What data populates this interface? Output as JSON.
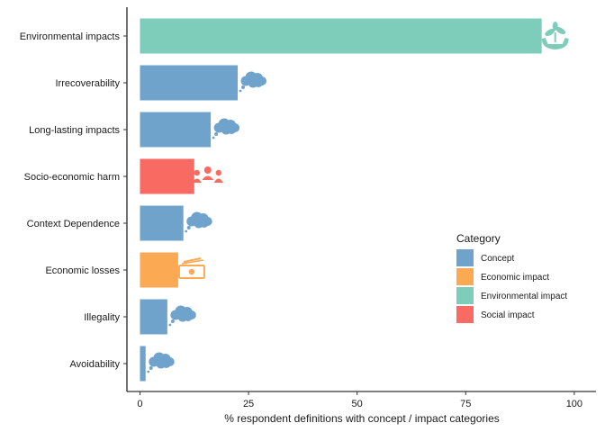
{
  "chart_data": {
    "type": "bar",
    "orientation": "horizontal",
    "categories": [
      "Environmental impacts",
      "Irrecoverability",
      "Long-lasting impacts",
      "Socio-economic harm",
      "Context Dependence",
      "Economic losses",
      "Illegality",
      "Avoidability"
    ],
    "values": [
      92.5,
      22.5,
      16.3,
      12.5,
      10.0,
      8.8,
      6.3,
      1.3
    ],
    "bar_category": [
      "Environmental impact",
      "Concept",
      "Concept",
      "Social impact",
      "Concept",
      "Economic impact",
      "Concept",
      "Concept"
    ],
    "bar_icon": [
      "hand-plant-icon",
      "thought-cloud-icon",
      "thought-cloud-icon",
      "people-icon",
      "thought-cloud-icon",
      "money-icon",
      "thought-cloud-icon",
      "thought-cloud-icon"
    ],
    "xlabel": "% respondent definitions with concept / impact categories",
    "ylabel": "",
    "xlim": [
      -3,
      105
    ],
    "xticks": [
      0,
      25,
      50,
      75,
      100
    ],
    "grid": false,
    "legend": {
      "title": "Category",
      "placement": "right",
      "entries": [
        {
          "name": "Concept",
          "color": "#6FA3CC"
        },
        {
          "name": "Economic impact",
          "color": "#FBA953"
        },
        {
          "name": "Environmental impact",
          "color": "#7ECDBA"
        },
        {
          "name": "Social impact",
          "color": "#F86A62"
        }
      ]
    }
  }
}
